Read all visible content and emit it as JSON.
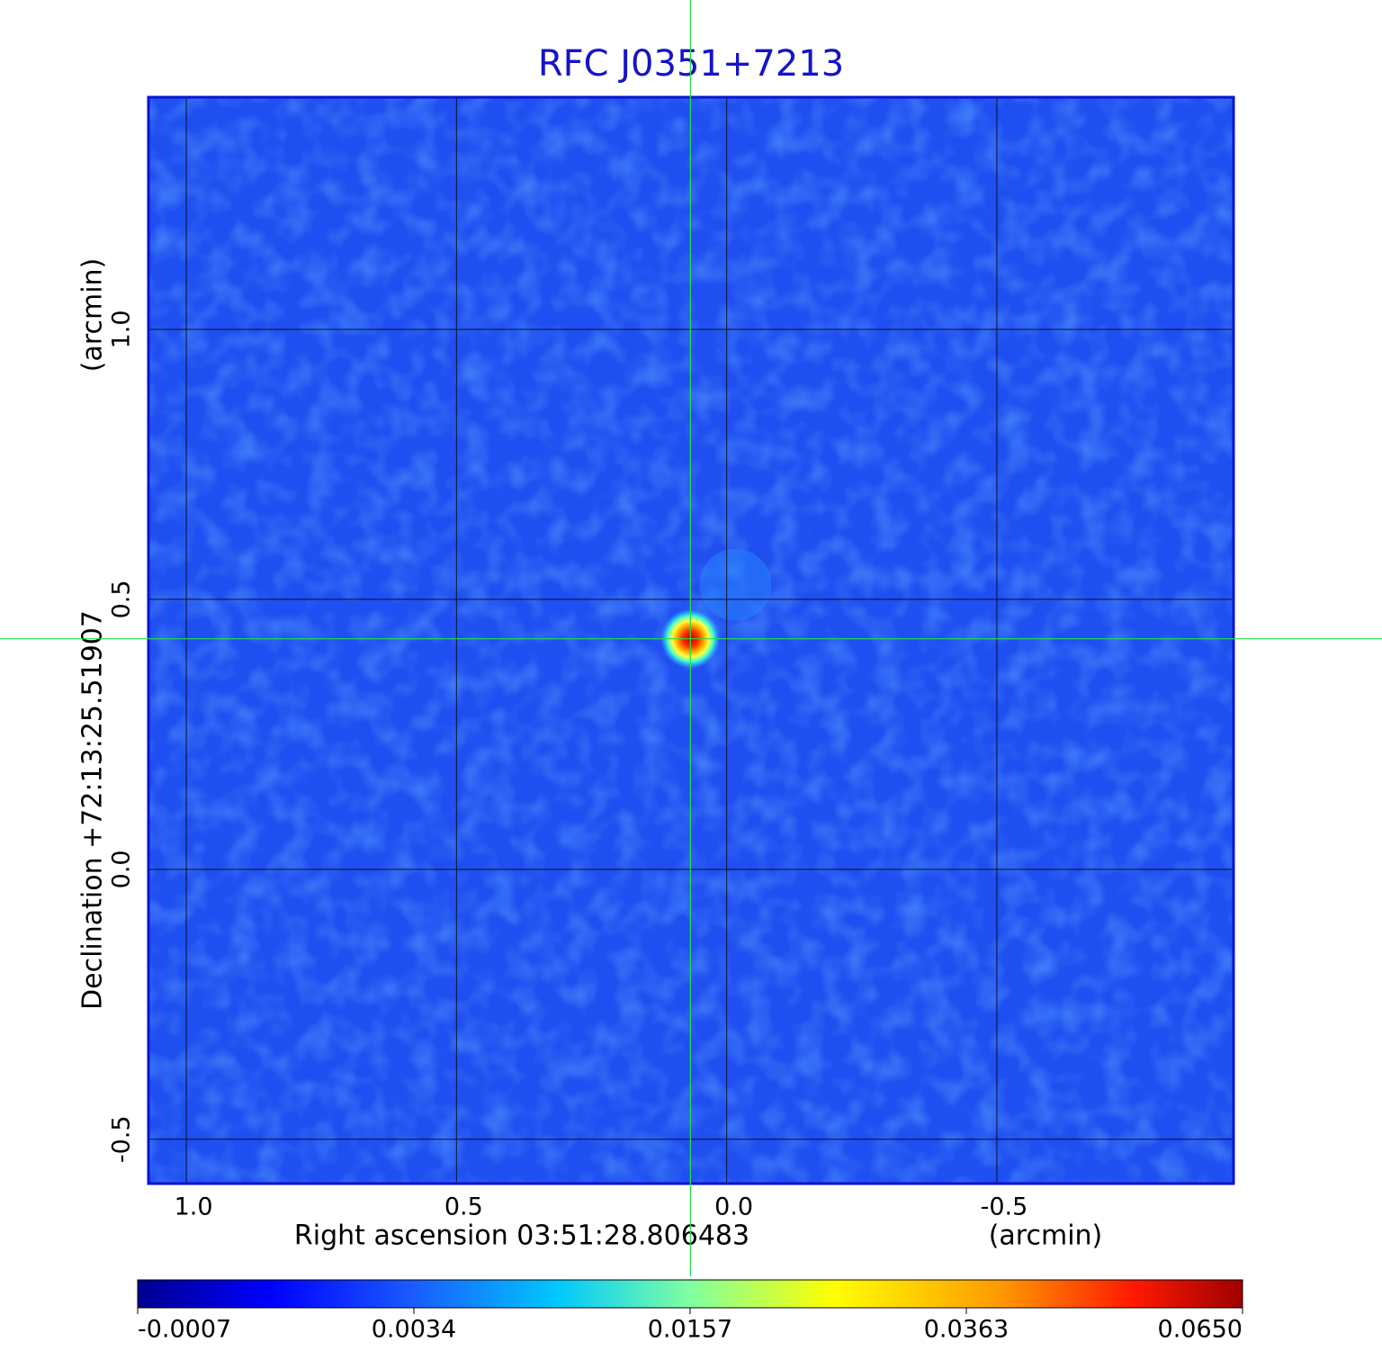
{
  "chart_data": {
    "type": "image",
    "title": "RFC J0351+7213",
    "x_label": "Right ascension  03:51:28.806483",
    "x_unit": "(arcmin)",
    "y_label": "Declination  +72:13:25.51907",
    "y_unit": "(arcmin)",
    "xlim": [
      1.07,
      -0.938
    ],
    "ylim": [
      -0.582,
      1.43
    ],
    "xticks": [
      {
        "value": 1,
        "label": "1.0"
      },
      0.5,
      {
        "value": 0,
        "label": "0.0"
      },
      -0.5
    ],
    "yticks": [
      -0.5,
      {
        "value": 0,
        "label": "0.0"
      },
      0.5,
      {
        "value": 1,
        "label": "1.0"
      }
    ],
    "grid": true,
    "background_color": "#1f4ff0",
    "border_color": "#0a14d2",
    "source": {
      "x": 0.067,
      "y": 0.427,
      "peak": 0.065
    },
    "colorbar": {
      "colormap": "jet",
      "ticks": [
        -0.0007,
        0.0034,
        0.0157,
        0.0363,
        {
          "value": 0.065,
          "label": "0.0650"
        }
      ]
    }
  }
}
